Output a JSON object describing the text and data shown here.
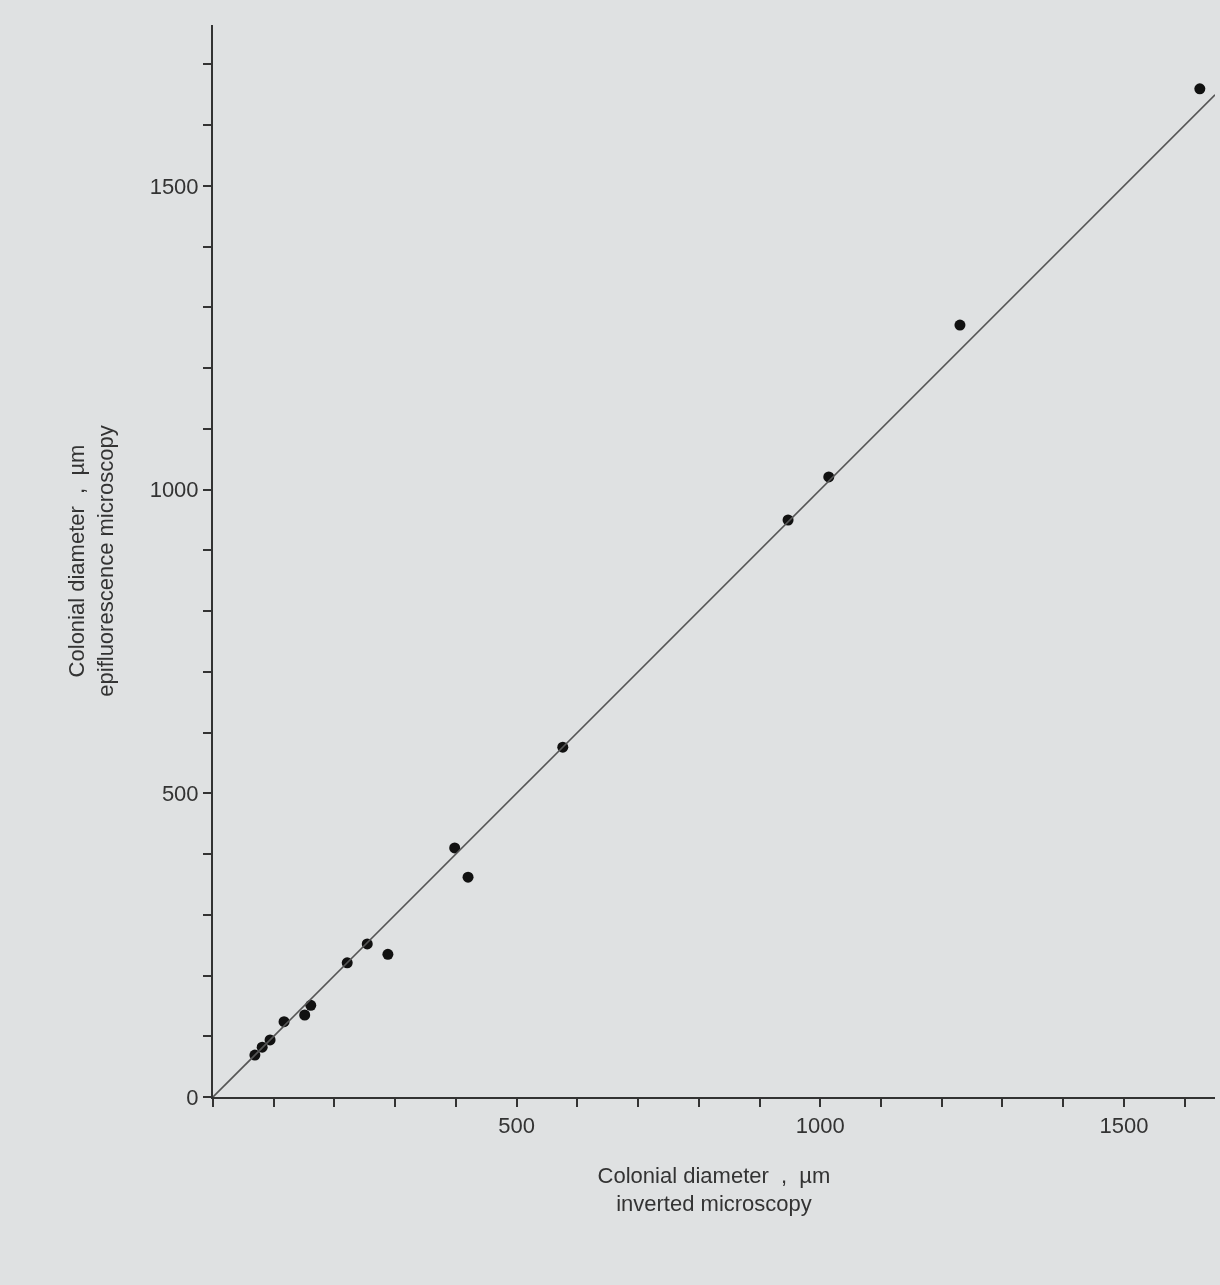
{
  "chart_data": {
    "type": "scatter",
    "xlabel": "Colonial diameter  ,  µm\ninverted microscopy",
    "ylabel": "Colonial diameter  ,  µm\nepifluorescence microscopy",
    "series": [
      {
        "color": "#111111",
        "marker": "circle",
        "x": [
          69,
          81,
          94,
          117,
          151,
          161,
          221,
          254,
          288,
          398,
          420,
          576,
          947,
          1014,
          1230,
          1625
        ],
        "values": [
          69,
          82,
          94,
          124,
          135,
          151,
          221,
          252,
          235,
          410,
          362,
          576,
          950,
          1021,
          1271,
          1660
        ]
      },
      {
        "type": "line",
        "color": "#555555",
        "marker": "none",
        "line_style": "solid",
        "x": [
          0,
          1650
        ],
        "values": [
          0,
          1650
        ]
      }
    ],
    "xlim": [
      0,
      1650
    ],
    "ylim": [
      0,
      1765
    ],
    "xticks": [
      {
        "value": 0,
        "label": null
      },
      {
        "value": 100,
        "label": null
      },
      {
        "value": 200,
        "label": null
      },
      {
        "value": 300,
        "label": null
      },
      {
        "value": 400,
        "label": null
      },
      500,
      {
        "value": 600,
        "label": null
      },
      {
        "value": 700,
        "label": null
      },
      {
        "value": 800,
        "label": null
      },
      {
        "value": 900,
        "label": null
      },
      1000,
      {
        "value": 1100,
        "label": null
      },
      {
        "value": 1200,
        "label": null
      },
      {
        "value": 1300,
        "label": null
      },
      {
        "value": 1400,
        "label": null
      },
      1500,
      {
        "value": 1600,
        "label": null
      }
    ],
    "yticks": [
      0,
      {
        "value": 100,
        "label": null
      },
      {
        "value": 200,
        "label": null
      },
      {
        "value": 300,
        "label": null
      },
      {
        "value": 400,
        "label": null
      },
      500,
      {
        "value": 600,
        "label": null
      },
      {
        "value": 700,
        "label": null
      },
      {
        "value": 800,
        "label": null
      },
      {
        "value": 900,
        "label": null
      },
      1000,
      {
        "value": 1100,
        "label": null
      },
      {
        "value": 1200,
        "label": null
      },
      {
        "value": 1300,
        "label": null
      },
      {
        "value": 1400,
        "label": null
      },
      1500,
      {
        "value": 1600,
        "label": null
      },
      {
        "value": 1700,
        "label": null
      }
    ],
    "grid": false
  }
}
